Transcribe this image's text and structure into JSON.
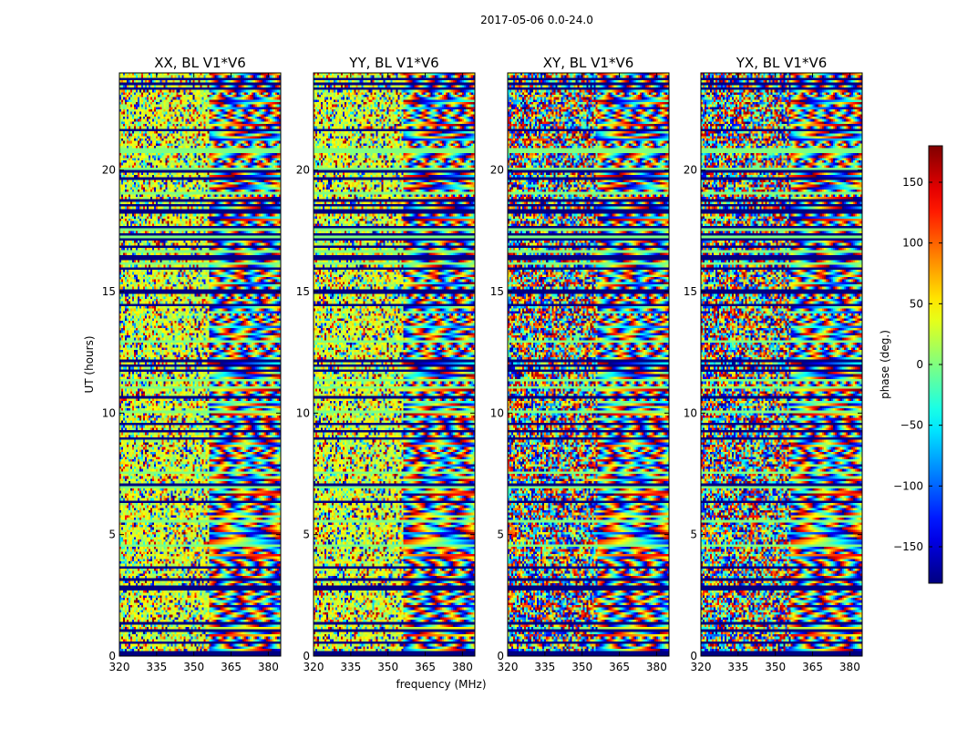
{
  "chart_data": {
    "type": "heatmap",
    "suptitle": "2017-05-06 0.0-24.0",
    "xlabel": "frequency (MHz)",
    "ylabel": "UT (hours)",
    "xlim": [
      320,
      385
    ],
    "ylim": [
      0,
      24
    ],
    "xticks": [
      320,
      335,
      350,
      365,
      380
    ],
    "yticks": [
      0,
      5,
      10,
      15,
      20
    ],
    "panels": [
      {
        "title": "XX, BL V1*V6"
      },
      {
        "title": "YY, BL V1*V6"
      },
      {
        "title": "XY, BL V1*V6"
      },
      {
        "title": "YX, BL V1*V6"
      }
    ],
    "colorbar": {
      "label": "phase (deg.)",
      "range": [
        -180,
        180
      ],
      "ticks": [
        150,
        100,
        50,
        0,
        -50,
        -100,
        -150
      ],
      "tick_labels": [
        "150",
        "100",
        "50",
        "0",
        "−50",
        "−100",
        "−150"
      ],
      "colormap": "jet"
    }
  }
}
